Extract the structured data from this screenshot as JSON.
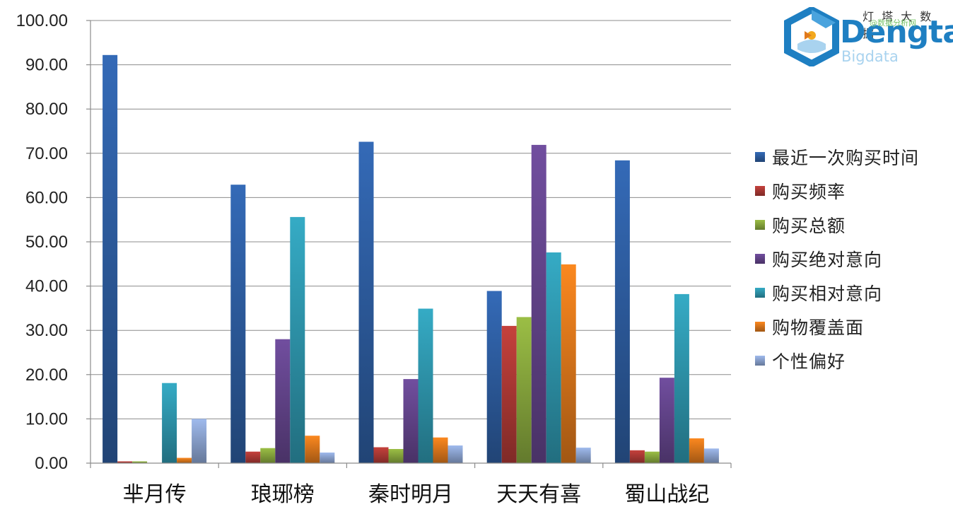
{
  "logo": {
    "text_cn": "灯 塔 大 数 据",
    "text_en": "Dengta",
    "sub": "Bigdata",
    "watermark": "@数据分析网"
  },
  "chart_data": {
    "type": "bar",
    "title": "",
    "xlabel": "",
    "ylabel": "",
    "ylim": [
      0,
      100
    ],
    "yticks": [
      "0.00",
      "10.00",
      "20.00",
      "30.00",
      "40.00",
      "50.00",
      "60.00",
      "70.00",
      "80.00",
      "90.00",
      "100.00"
    ],
    "ytick_values": [
      0,
      10,
      20,
      30,
      40,
      50,
      60,
      70,
      80,
      90,
      100
    ],
    "grid": true,
    "legend_position": "right",
    "categories": [
      "芈月传",
      "琅琊榜",
      "秦时明月",
      "天天有喜",
      "蜀山战纪"
    ],
    "series": [
      {
        "name": "最近一次购买时间",
        "color": "#2e5fa3",
        "values": [
          92.2,
          62.9,
          72.6,
          38.9,
          68.4
        ]
      },
      {
        "name": "购买频率",
        "color": "#b03a36",
        "values": [
          0.4,
          2.6,
          3.6,
          31.0,
          2.9
        ]
      },
      {
        "name": "购买总额",
        "color": "#8aaa3e",
        "values": [
          0.4,
          3.4,
          3.2,
          33.0,
          2.6
        ]
      },
      {
        "name": "购买绝对意向",
        "color": "#65468e",
        "values": [
          0.0,
          28.0,
          19.0,
          71.9,
          19.3
        ]
      },
      {
        "name": "购买相对意向",
        "color": "#2f99b0",
        "values": [
          18.1,
          55.6,
          34.9,
          47.6,
          38.2
        ]
      },
      {
        "name": "购物覆盖面",
        "color": "#e0791c",
        "values": [
          1.2,
          6.2,
          5.8,
          44.9,
          5.6
        ]
      },
      {
        "name": "个性偏好",
        "color": "#8ea6d4",
        "values": [
          10.0,
          2.4,
          4.0,
          3.5,
          3.3
        ]
      }
    ]
  }
}
